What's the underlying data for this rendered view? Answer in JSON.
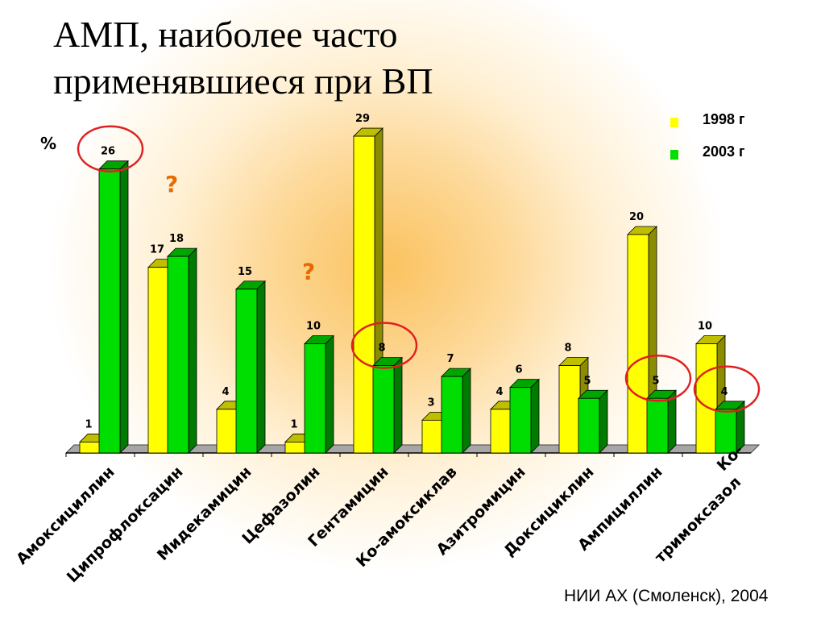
{
  "slide": {
    "title_line1": "АМП, наиболее часто",
    "title_line2": "применявшиеся при ВП",
    "source": "НИИ АХ (Смоленск), 2004"
  },
  "chart_data": {
    "type": "bar",
    "ylabel": "%",
    "ylim": [
      0,
      30
    ],
    "grid": false,
    "legend_position": "top-right",
    "categories": [
      "Амоксициллин",
      "Ципрофлоксацин",
      "Мидекамицин",
      "Цефазолин",
      "Гентамицин",
      "Ко-амоксиклав",
      "Азитромицин",
      "Доксициклин",
      "Ампициллин",
      "Ко-тримоксазол"
    ],
    "category_lines": [
      [
        "Амоксициллин"
      ],
      [
        "Ципрофлоксацин"
      ],
      [
        "Мидекамицин"
      ],
      [
        "Цефазолин"
      ],
      [
        "Гентамицин"
      ],
      [
        "Ко-амоксиклав"
      ],
      [
        "Азитромицин"
      ],
      [
        "Доксициклин"
      ],
      [
        "Ампициллин"
      ],
      [
        "Ко-",
        "тримоксазол"
      ]
    ],
    "series": [
      {
        "name": "1998 г",
        "color": "#ffff00",
        "values": [
          1,
          17,
          4,
          1,
          29,
          3,
          4,
          8,
          20,
          10
        ]
      },
      {
        "name": "2003 г",
        "color": "#00dd00",
        "values": [
          26,
          18,
          15,
          10,
          8,
          7,
          6,
          5,
          5,
          4
        ]
      }
    ],
    "annotations": [
      {
        "type": "question-mark",
        "text": "?",
        "near_category": 1
      },
      {
        "type": "question-mark",
        "text": "?",
        "near_category": 3
      },
      {
        "type": "circle",
        "series": 1,
        "category": 0
      },
      {
        "type": "circle",
        "series": 1,
        "category": 4
      },
      {
        "type": "circle",
        "series": 1,
        "category": 8
      },
      {
        "type": "circle",
        "series": 1,
        "category": 9
      }
    ],
    "highlight_color": "#e02020"
  }
}
